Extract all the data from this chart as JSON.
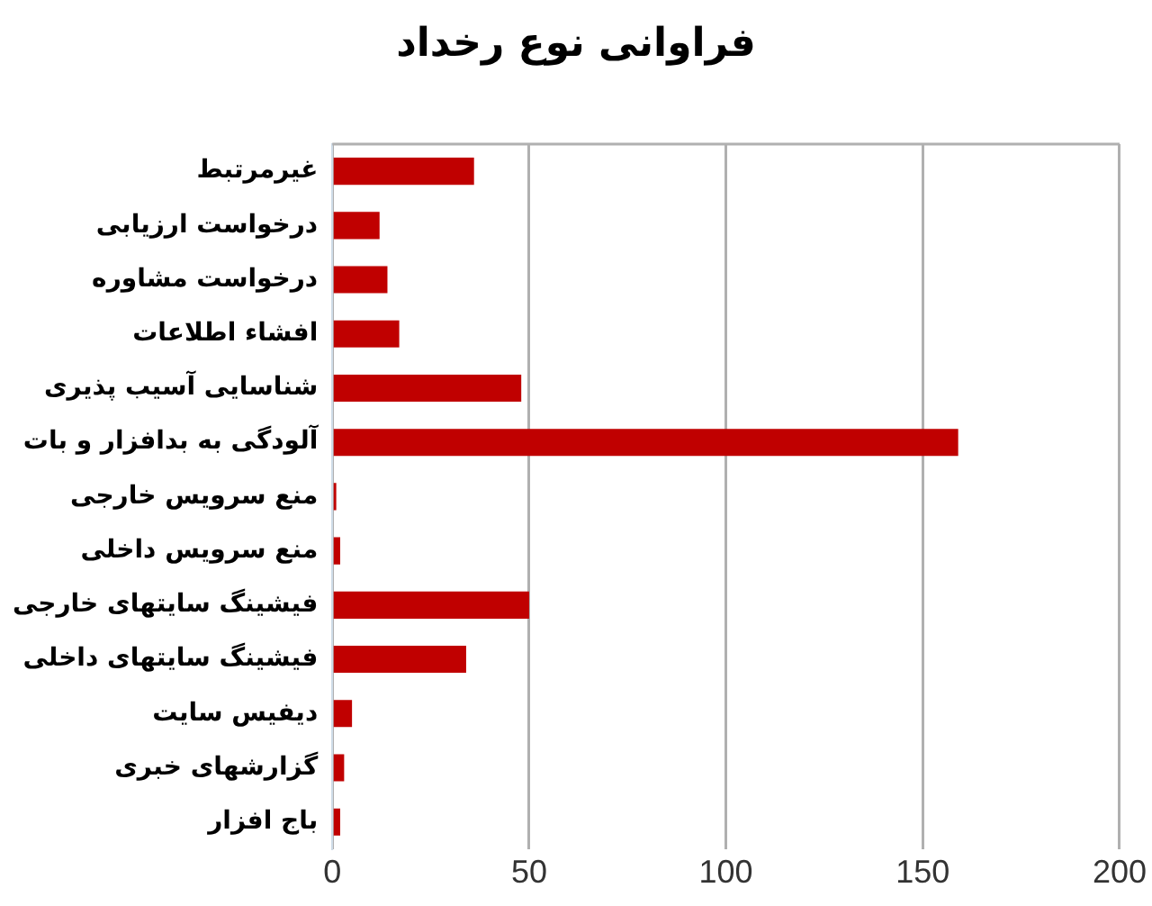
{
  "chart_data": {
    "type": "bar",
    "orientation": "horizontal",
    "title": "فراوانی نوع رخداد",
    "categories": [
      "غیرمرتبط",
      "درخواست ارزیابی",
      "درخواست مشاوره",
      "افشاء اطلاعات",
      "شناسایی آسیب پذیری",
      "آلودگی به بدافزار و بات",
      "منع سرویس خارجی",
      "منع سرویس داخلی",
      "فیشینگ سایتهای خارجی",
      "فیشینگ سایتهای داخلی",
      "دیفیس سایت",
      "گزارشهای خبری",
      "باج افزار"
    ],
    "values": [
      36,
      12,
      14,
      17,
      48,
      159,
      1,
      2,
      50,
      34,
      5,
      3,
      2
    ],
    "color": "#c00000",
    "xlim": [
      0,
      200
    ],
    "xticks": [
      0,
      50,
      100,
      150,
      200
    ],
    "grid": "x"
  }
}
